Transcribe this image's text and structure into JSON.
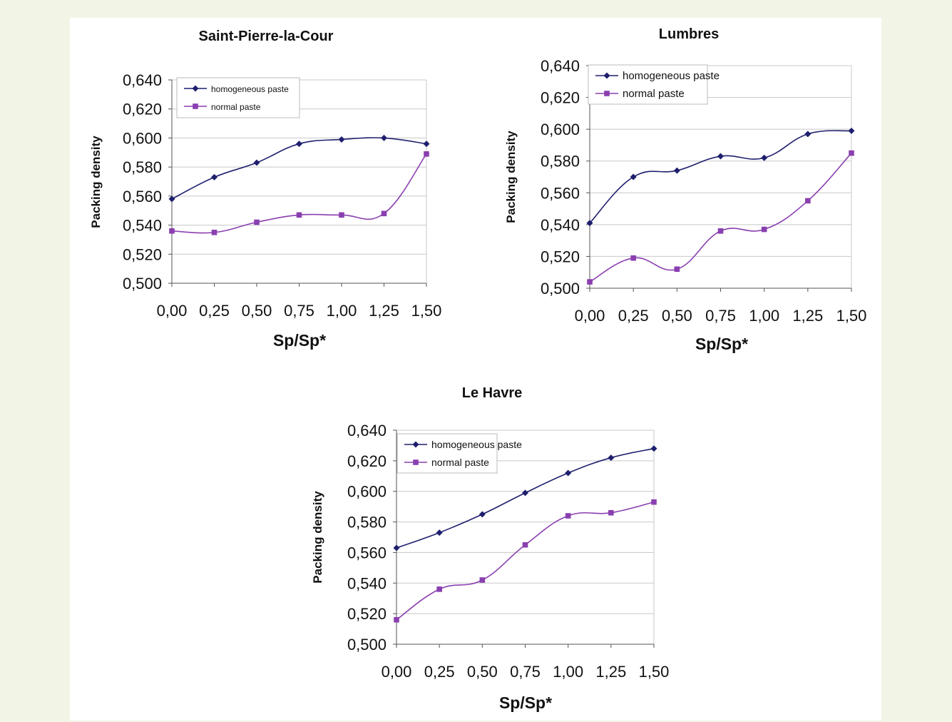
{
  "colors": {
    "homogeneous": "#1f1f6e",
    "normal": "#8a3fb0",
    "grid": "#c8c8c8",
    "axis": "#555555"
  },
  "chart_data": [
    {
      "type": "line",
      "title": "Saint-Pierre-la-Cour",
      "xlabel": "Sp/Sp*",
      "ylabel": "Packing density",
      "x": [
        0,
        0.25,
        0.5,
        0.75,
        1.0,
        1.25,
        1.5
      ],
      "x_tick_labels": [
        "0,00",
        "0,25",
        "0,50",
        "0,75",
        "1,00",
        "1,25",
        "1,50"
      ],
      "ylim": [
        0.5,
        0.64
      ],
      "y_tick_labels": [
        "0,500",
        "0,520",
        "0,540",
        "0,560",
        "0,580",
        "0,600",
        "0,620",
        "0,640"
      ],
      "legend_position": "top-left",
      "grid": true,
      "series": [
        {
          "name": "homogeneous paste",
          "marker": "diamond",
          "values": [
            0.558,
            0.573,
            0.583,
            0.596,
            0.599,
            0.6,
            0.596
          ]
        },
        {
          "name": "normal paste",
          "marker": "square",
          "values": [
            0.536,
            0.535,
            0.542,
            0.547,
            0.547,
            0.548,
            0.589
          ]
        }
      ]
    },
    {
      "type": "line",
      "title": "Lumbres",
      "xlabel": "Sp/Sp*",
      "ylabel": "Packing density",
      "x": [
        0,
        0.25,
        0.5,
        0.75,
        1.0,
        1.25,
        1.5
      ],
      "x_tick_labels": [
        "0,00",
        "0,25",
        "0,50",
        "0,75",
        "1,00",
        "1,25",
        "1,50"
      ],
      "ylim": [
        0.5,
        0.64
      ],
      "y_tick_labels": [
        "0,500",
        "0,520",
        "0,540",
        "0,560",
        "0,580",
        "0,600",
        "0,620",
        "0,640"
      ],
      "legend_position": "top-left",
      "grid": true,
      "series": [
        {
          "name": "homogeneous paste",
          "marker": "diamond",
          "values": [
            0.541,
            0.57,
            0.574,
            0.583,
            0.582,
            0.597,
            0.599
          ]
        },
        {
          "name": "normal paste",
          "marker": "square",
          "values": [
            0.504,
            0.519,
            0.512,
            0.536,
            0.537,
            0.555,
            0.585
          ]
        }
      ]
    },
    {
      "type": "line",
      "title": "Le Havre",
      "xlabel": "Sp/Sp*",
      "ylabel": "Packing density",
      "x": [
        0,
        0.25,
        0.5,
        0.75,
        1.0,
        1.25,
        1.5
      ],
      "x_tick_labels": [
        "0,00",
        "0,25",
        "0,50",
        "0,75",
        "1,00",
        "1,25",
        "1,50"
      ],
      "ylim": [
        0.5,
        0.64
      ],
      "y_tick_labels": [
        "0,500",
        "0,520",
        "0,540",
        "0,560",
        "0,580",
        "0,600",
        "0,620",
        "0,640"
      ],
      "legend_position": "top-left",
      "grid": true,
      "series": [
        {
          "name": "homogeneous paste",
          "marker": "diamond",
          "values": [
            0.563,
            0.573,
            0.585,
            0.599,
            0.612,
            0.622,
            0.628
          ]
        },
        {
          "name": "normal paste",
          "marker": "square",
          "values": [
            0.516,
            0.536,
            0.542,
            0.565,
            0.584,
            0.586,
            0.593
          ]
        }
      ]
    }
  ]
}
